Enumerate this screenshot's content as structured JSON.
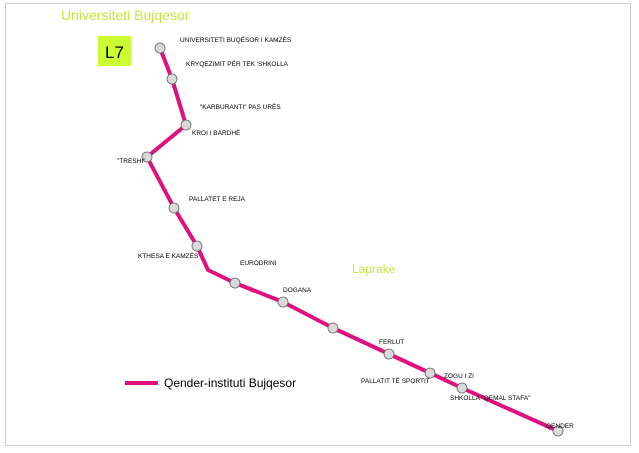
{
  "map": {
    "title": "Universiteti Bujqesor",
    "area_label": "Laprake",
    "line_badge": "L7",
    "line_color": "#e0117f",
    "badge_color": "#ccff33",
    "label_green": "#c3e63a",
    "stop_fill": "#d9d9d9",
    "legend_label": "Qender-instituti Bujqesor",
    "stops": [
      {
        "name": "UNIVERSITETI BUQËSOR I KAMZËS"
      },
      {
        "name": "KRYQEZIMIT PËR TEK 'SHKOLLA"
      },
      {
        "name": "\"KARBURANTI\" PAS URËS"
      },
      {
        "name": "KROI I BARDHË"
      },
      {
        "name": "\"TRESHI\""
      },
      {
        "name": "PALLATET E REJA"
      },
      {
        "name": "KTHESA E KAMZËS"
      },
      {
        "name": "EURODRINI"
      },
      {
        "name": "DOGANA"
      },
      {
        "name": ""
      },
      {
        "name": "FERLUT"
      },
      {
        "name": "ZOGU I ZI"
      },
      {
        "name": "PALLATIT TË SPORTIT"
      },
      {
        "name": "SHKOLLA \"QEMAL STAFA\""
      },
      {
        "name": "QENDER"
      }
    ]
  }
}
